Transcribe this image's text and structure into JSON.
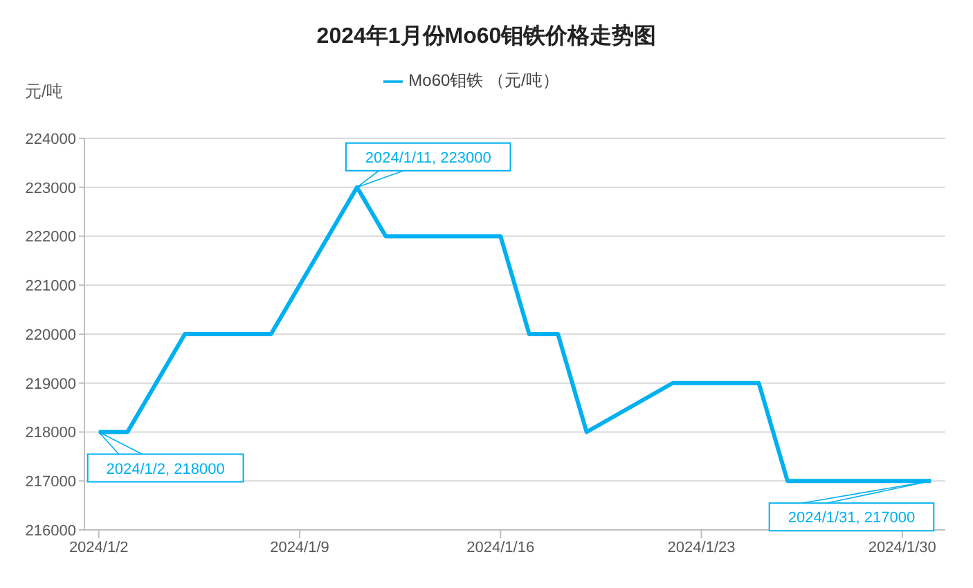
{
  "chart_data": {
    "type": "line",
    "title": "2024年1月份Mo60钼铁价格走势图",
    "ylabel": "元/吨",
    "x": [
      "2024-01-02",
      "2024-01-03",
      "2024-01-05",
      "2024-01-08",
      "2024-01-11",
      "2024-01-12",
      "2024-01-16",
      "2024-01-17",
      "2024-01-18",
      "2024-01-19",
      "2024-01-22",
      "2024-01-25",
      "2024-01-26",
      "2024-01-31"
    ],
    "series": [
      {
        "name": "Mo60钼铁 （元/吨）",
        "color": "#00b0f0",
        "values": [
          218000,
          218000,
          220000,
          220000,
          223000,
          222000,
          222000,
          220000,
          220000,
          218000,
          219000,
          219000,
          217000,
          217000
        ]
      }
    ],
    "xlim": [
      "2024-01-01T12:00",
      "2024-01-31T12:00"
    ],
    "xticks": [
      {
        "value": "2024-01-02",
        "label": "2024/1/2"
      },
      {
        "value": "2024-01-09",
        "label": "2024/1/9"
      },
      {
        "value": "2024-01-16",
        "label": "2024/1/16"
      },
      {
        "value": "2024-01-23",
        "label": "2024/1/23"
      },
      {
        "value": "2024-01-30",
        "label": "2024/1/30"
      }
    ],
    "ylim": [
      216000,
      224000
    ],
    "yticks": [
      216000,
      217000,
      218000,
      219000,
      220000,
      221000,
      222000,
      223000,
      224000
    ],
    "annotations": [
      {
        "text": "2024/1/2, 218000",
        "x": "2024-01-02",
        "y": 218000
      },
      {
        "text": "2024/1/11, 223000",
        "x": "2024-01-11",
        "y": 223000
      },
      {
        "text": "2024/1/31, 217000",
        "x": "2024-01-31",
        "y": 217000
      }
    ],
    "grid": "y",
    "legend": "top",
    "marker": "none",
    "line_style": "solid"
  }
}
